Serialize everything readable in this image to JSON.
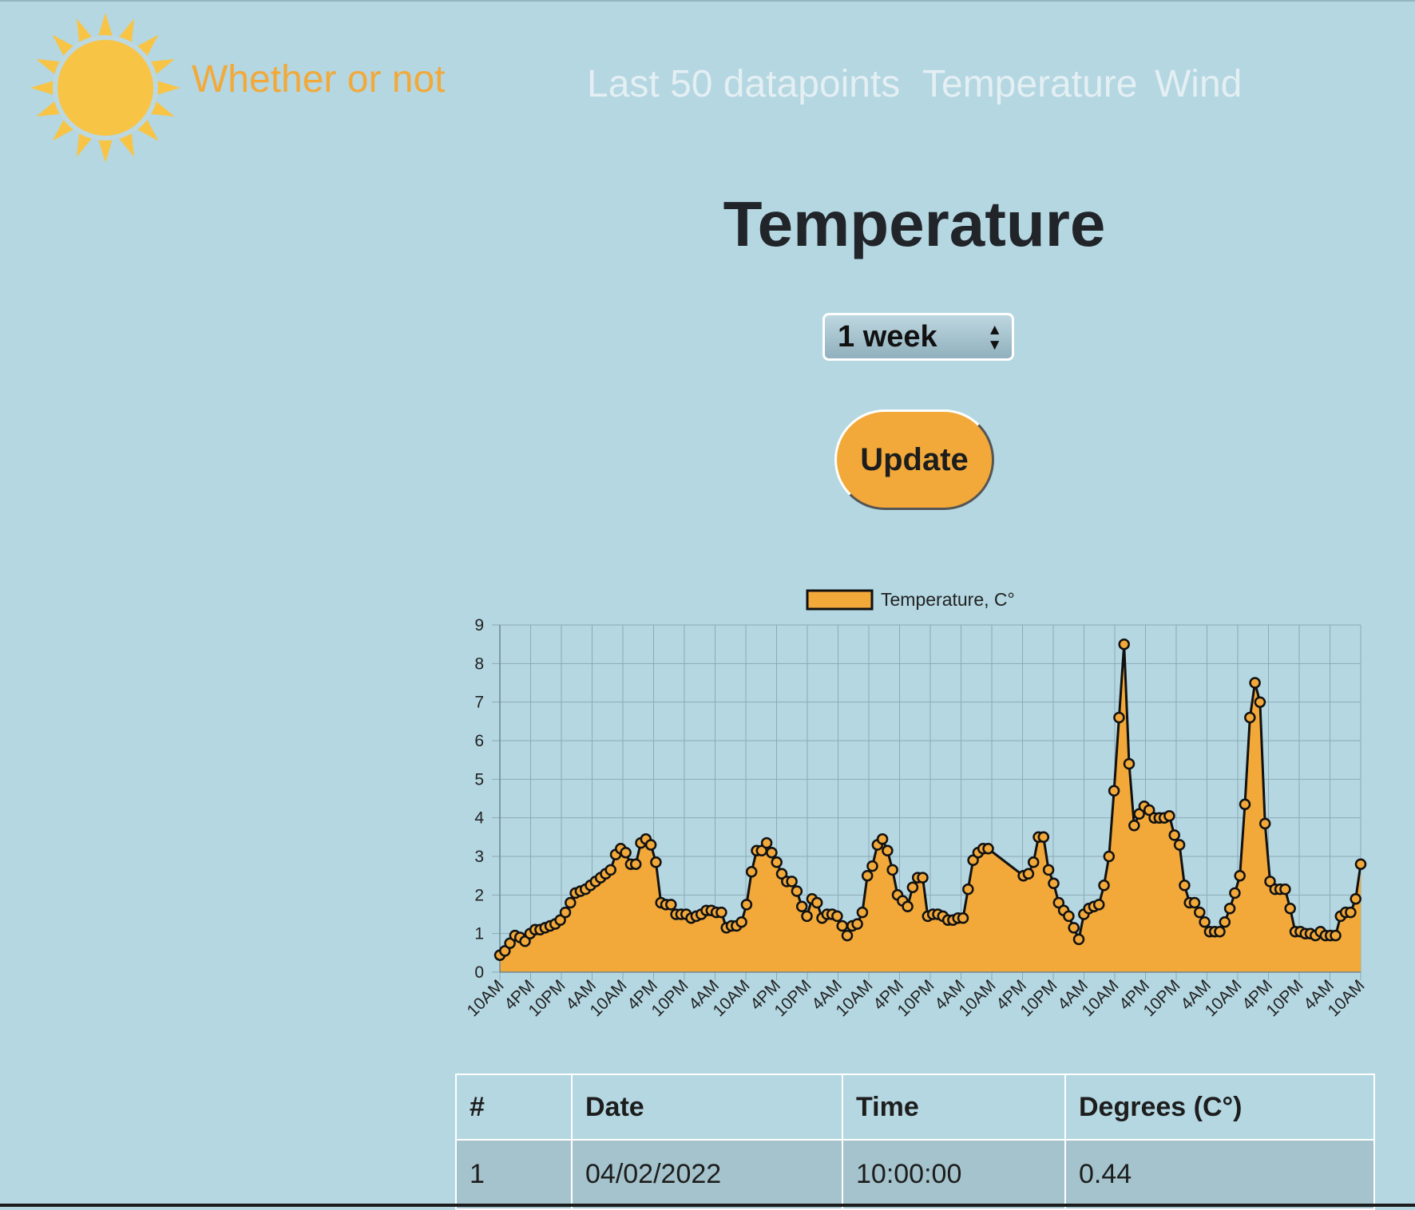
{
  "header": {
    "brand": "Whether or not",
    "nav": [
      "Last 50 datapoints",
      "Temperature",
      "Wind"
    ]
  },
  "page": {
    "title": "Temperature",
    "range_select": "1 week",
    "update_label": "Update"
  },
  "colors": {
    "background": "#b4d7e2",
    "accent": "#f2a93a",
    "nav_text": "#e4eff3"
  },
  "chart_data": {
    "type": "area",
    "legend": "Temperature, C°",
    "legend_position": "top",
    "grid": true,
    "ylim": [
      0,
      9
    ],
    "yticks": [
      "0",
      "1",
      "2",
      "3",
      "4",
      "5",
      "6",
      "7",
      "8",
      "9"
    ],
    "xticks": [
      "10AM",
      "4PM",
      "10PM",
      "4AM",
      "10AM",
      "4PM",
      "10PM",
      "4AM",
      "10AM",
      "4PM",
      "10PM",
      "4AM",
      "10AM",
      "4PM",
      "10PM",
      "4AM",
      "10AM",
      "4PM",
      "10PM",
      "4AM",
      "10AM",
      "4PM",
      "10PM",
      "4AM",
      "10AM",
      "4PM",
      "10PM",
      "4AM",
      "10AM"
    ],
    "series": [
      {
        "name": "Temperature, C°",
        "points": [
          [
            0,
            0.44
          ],
          [
            1,
            0.55
          ],
          [
            2,
            0.75
          ],
          [
            3,
            0.95
          ],
          [
            4,
            0.9
          ],
          [
            5,
            0.8
          ],
          [
            6,
            1.0
          ],
          [
            7,
            1.1
          ],
          [
            8,
            1.1
          ],
          [
            9,
            1.15
          ],
          [
            10,
            1.2
          ],
          [
            11,
            1.25
          ],
          [
            12,
            1.35
          ],
          [
            13,
            1.55
          ],
          [
            14,
            1.8
          ],
          [
            15,
            2.05
          ],
          [
            16,
            2.1
          ],
          [
            17,
            2.15
          ],
          [
            18,
            2.25
          ],
          [
            19,
            2.35
          ],
          [
            20,
            2.45
          ],
          [
            21,
            2.55
          ],
          [
            22,
            2.65
          ],
          [
            23,
            3.05
          ],
          [
            24,
            3.2
          ],
          [
            25,
            3.1
          ],
          [
            26,
            2.8
          ],
          [
            27,
            2.8
          ],
          [
            28,
            3.35
          ],
          [
            29,
            3.45
          ],
          [
            30,
            3.3
          ],
          [
            31,
            2.85
          ],
          [
            32,
            1.8
          ],
          [
            33,
            1.75
          ],
          [
            34,
            1.75
          ],
          [
            35,
            1.5
          ],
          [
            36,
            1.5
          ],
          [
            37,
            1.5
          ],
          [
            38,
            1.4
          ],
          [
            39,
            1.45
          ],
          [
            40,
            1.5
          ],
          [
            41,
            1.6
          ],
          [
            42,
            1.6
          ],
          [
            43,
            1.55
          ],
          [
            44,
            1.55
          ],
          [
            45,
            1.15
          ],
          [
            46,
            1.2
          ],
          [
            47,
            1.2
          ],
          [
            48,
            1.3
          ],
          [
            49,
            1.75
          ],
          [
            50,
            2.6
          ],
          [
            51,
            3.15
          ],
          [
            52,
            3.15
          ],
          [
            53,
            3.35
          ],
          [
            54,
            3.1
          ],
          [
            55,
            2.85
          ],
          [
            56,
            2.55
          ],
          [
            57,
            2.35
          ],
          [
            58,
            2.35
          ],
          [
            59,
            2.1
          ],
          [
            60,
            1.7
          ],
          [
            61,
            1.45
          ],
          [
            62,
            1.9
          ],
          [
            63,
            1.8
          ],
          [
            64,
            1.4
          ],
          [
            65,
            1.5
          ],
          [
            66,
            1.5
          ],
          [
            67,
            1.45
          ],
          [
            68,
            1.2
          ],
          [
            69,
            0.95
          ],
          [
            70,
            1.2
          ],
          [
            71,
            1.25
          ],
          [
            72,
            1.55
          ],
          [
            73,
            2.5
          ],
          [
            74,
            2.75
          ],
          [
            75,
            3.3
          ],
          [
            76,
            3.45
          ],
          [
            77,
            3.15
          ],
          [
            78,
            2.65
          ],
          [
            79,
            2.0
          ],
          [
            80,
            1.85
          ],
          [
            81,
            1.7
          ],
          [
            82,
            2.2
          ],
          [
            83,
            2.45
          ],
          [
            84,
            2.45
          ],
          [
            85,
            1.45
          ],
          [
            86,
            1.5
          ],
          [
            87,
            1.5
          ],
          [
            88,
            1.45
          ],
          [
            89,
            1.35
          ],
          [
            90,
            1.35
          ],
          [
            91,
            1.4
          ],
          [
            92,
            1.4
          ],
          [
            93,
            2.15
          ],
          [
            94,
            2.9
          ],
          [
            95,
            3.1
          ],
          [
            96,
            3.2
          ],
          [
            97,
            3.2
          ],
          [
            104,
            2.5
          ],
          [
            105,
            2.55
          ],
          [
            106,
            2.85
          ],
          [
            107,
            3.5
          ],
          [
            108,
            3.5
          ],
          [
            109,
            2.65
          ],
          [
            110,
            2.3
          ],
          [
            111,
            1.8
          ],
          [
            112,
            1.6
          ],
          [
            113,
            1.45
          ],
          [
            114,
            1.15
          ],
          [
            115,
            0.85
          ],
          [
            116,
            1.5
          ],
          [
            117,
            1.65
          ],
          [
            118,
            1.7
          ],
          [
            119,
            1.75
          ],
          [
            120,
            2.25
          ],
          [
            121,
            3.0
          ],
          [
            122,
            4.7
          ],
          [
            123,
            6.6
          ],
          [
            124,
            8.5
          ],
          [
            125,
            5.4
          ],
          [
            126,
            3.8
          ],
          [
            127,
            4.1
          ],
          [
            128,
            4.3
          ],
          [
            129,
            4.2
          ],
          [
            130,
            4.0
          ],
          [
            131,
            4.0
          ],
          [
            132,
            4.0
          ],
          [
            133,
            4.05
          ],
          [
            134,
            3.55
          ],
          [
            135,
            3.3
          ],
          [
            136,
            2.25
          ],
          [
            137,
            1.8
          ],
          [
            138,
            1.8
          ],
          [
            139,
            1.55
          ],
          [
            140,
            1.3
          ],
          [
            141,
            1.05
          ],
          [
            142,
            1.05
          ],
          [
            143,
            1.05
          ],
          [
            144,
            1.3
          ],
          [
            145,
            1.65
          ],
          [
            146,
            2.05
          ],
          [
            147,
            2.5
          ],
          [
            148,
            4.35
          ],
          [
            149,
            6.6
          ],
          [
            150,
            7.5
          ],
          [
            151,
            7.0
          ],
          [
            152,
            3.85
          ],
          [
            153,
            2.35
          ],
          [
            154,
            2.15
          ],
          [
            155,
            2.15
          ],
          [
            156,
            2.15
          ],
          [
            157,
            1.65
          ],
          [
            158,
            1.05
          ],
          [
            159,
            1.05
          ],
          [
            160,
            1.0
          ],
          [
            161,
            1.0
          ],
          [
            162,
            0.95
          ],
          [
            163,
            1.05
          ],
          [
            164,
            0.95
          ],
          [
            165,
            0.95
          ],
          [
            166,
            0.95
          ],
          [
            167,
            1.45
          ],
          [
            168,
            1.55
          ],
          [
            169,
            1.55
          ],
          [
            170,
            1.9
          ],
          [
            171,
            2.8
          ]
        ]
      }
    ]
  },
  "table": {
    "headers": [
      "#",
      "Date",
      "Time",
      "Degrees (C°)"
    ],
    "rows": [
      [
        "1",
        "04/02/2022",
        "10:00:00",
        "0.44"
      ]
    ]
  }
}
